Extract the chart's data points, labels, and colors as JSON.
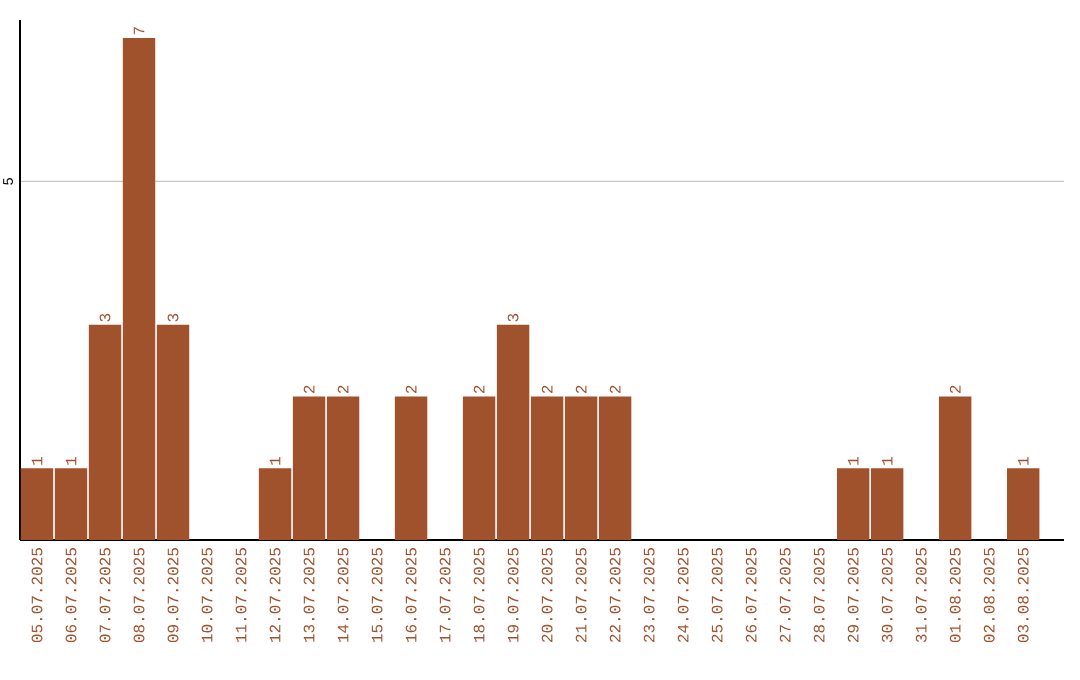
{
  "chart_data": {
    "type": "bar",
    "categories": [
      "05.07.2025",
      "06.07.2025",
      "07.07.2025",
      "08.07.2025",
      "09.07.2025",
      "10.07.2025",
      "11.07.2025",
      "12.07.2025",
      "13.07.2025",
      "14.07.2025",
      "15.07.2025",
      "16.07.2025",
      "17.07.2025",
      "18.07.2025",
      "19.07.2025",
      "20.07.2025",
      "21.07.2025",
      "22.07.2025",
      "23.07.2025",
      "24.07.2025",
      "25.07.2025",
      "26.07.2025",
      "27.07.2025",
      "28.07.2025",
      "29.07.2025",
      "30.07.2025",
      "31.07.2025",
      "01.08.2025",
      "02.08.2025",
      "03.08.2025"
    ],
    "values": [
      1,
      1,
      3,
      7,
      3,
      0,
      0,
      1,
      2,
      2,
      0,
      2,
      0,
      2,
      3,
      2,
      2,
      2,
      0,
      0,
      0,
      0,
      0,
      0,
      1,
      1,
      0,
      2,
      0,
      1
    ],
    "value_labels": [
      "1",
      "1",
      "3",
      "7",
      "3",
      null,
      null,
      "1",
      "2",
      "2",
      null,
      "2",
      null,
      "2",
      "3",
      "2",
      "2",
      "2",
      null,
      null,
      null,
      null,
      null,
      null,
      "1",
      "1",
      null,
      "2",
      null,
      "1"
    ],
    "color": "#a0522d",
    "ylim": [
      0,
      7.25
    ],
    "yticks": [
      5
    ],
    "grid": "y"
  }
}
